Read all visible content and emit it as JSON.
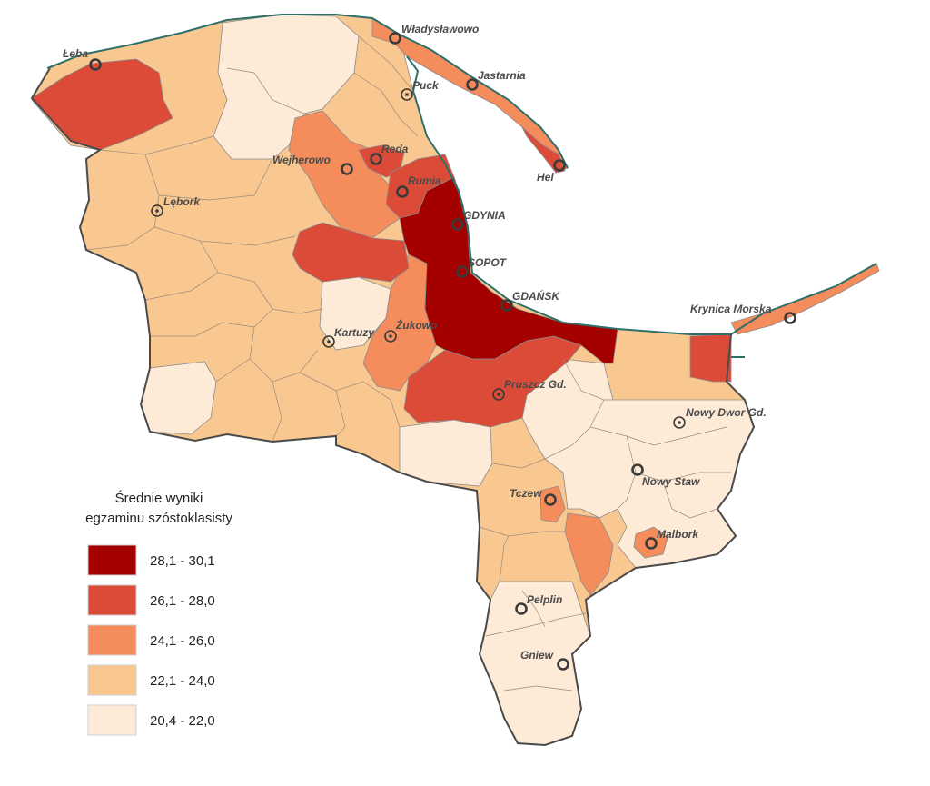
{
  "colors": {
    "class1": "#a50000",
    "class2": "#dc4b38",
    "class3": "#f48c5c",
    "class4": "#f9c890",
    "class5": "#fdebd8"
  },
  "legend": {
    "title_line1": "Średnie wyniki",
    "title_line2": "egzaminu szóstoklasisty",
    "items": [
      {
        "label": "28,1 - 30,1",
        "color": "#a50000"
      },
      {
        "label": "26,1 - 28,0",
        "color": "#dc4b38"
      },
      {
        "label": "24,1 - 26,0",
        "color": "#f48c5c"
      },
      {
        "label": "22,1 - 24,0",
        "color": "#f9c890"
      },
      {
        "label": "20,4 - 22,0",
        "color": "#fdebd8"
      }
    ]
  },
  "towns": [
    {
      "id": "leba",
      "name": "Łeba"
    },
    {
      "id": "wladyslawowo",
      "name": "Władysławowo"
    },
    {
      "id": "jastarnia",
      "name": "Jastarnia"
    },
    {
      "id": "puck",
      "name": "Puck"
    },
    {
      "id": "hel",
      "name": "Hel"
    },
    {
      "id": "reda",
      "name": "Reda"
    },
    {
      "id": "wejherowo",
      "name": "Wejherowo"
    },
    {
      "id": "rumia",
      "name": "Rumia"
    },
    {
      "id": "lebork",
      "name": "Lębork"
    },
    {
      "id": "gdynia",
      "name": "GDYNIA"
    },
    {
      "id": "sopot",
      "name": "SOPOT"
    },
    {
      "id": "gdansk",
      "name": "GDAŃSK"
    },
    {
      "id": "krynica",
      "name": "Krynica Morska"
    },
    {
      "id": "kartuzy",
      "name": "Kartuzy"
    },
    {
      "id": "zukowo",
      "name": "Żukowo"
    },
    {
      "id": "pruszcz",
      "name": "Pruszcz Gd."
    },
    {
      "id": "nowydwor",
      "name": "Nowy Dwor Gd."
    },
    {
      "id": "nowystaw",
      "name": "Nowy Staw"
    },
    {
      "id": "tczew",
      "name": "Tczew"
    },
    {
      "id": "malbork",
      "name": "Malbork"
    },
    {
      "id": "pelplin",
      "name": "Pelplin"
    },
    {
      "id": "gniew",
      "name": "Gniew"
    }
  ]
}
